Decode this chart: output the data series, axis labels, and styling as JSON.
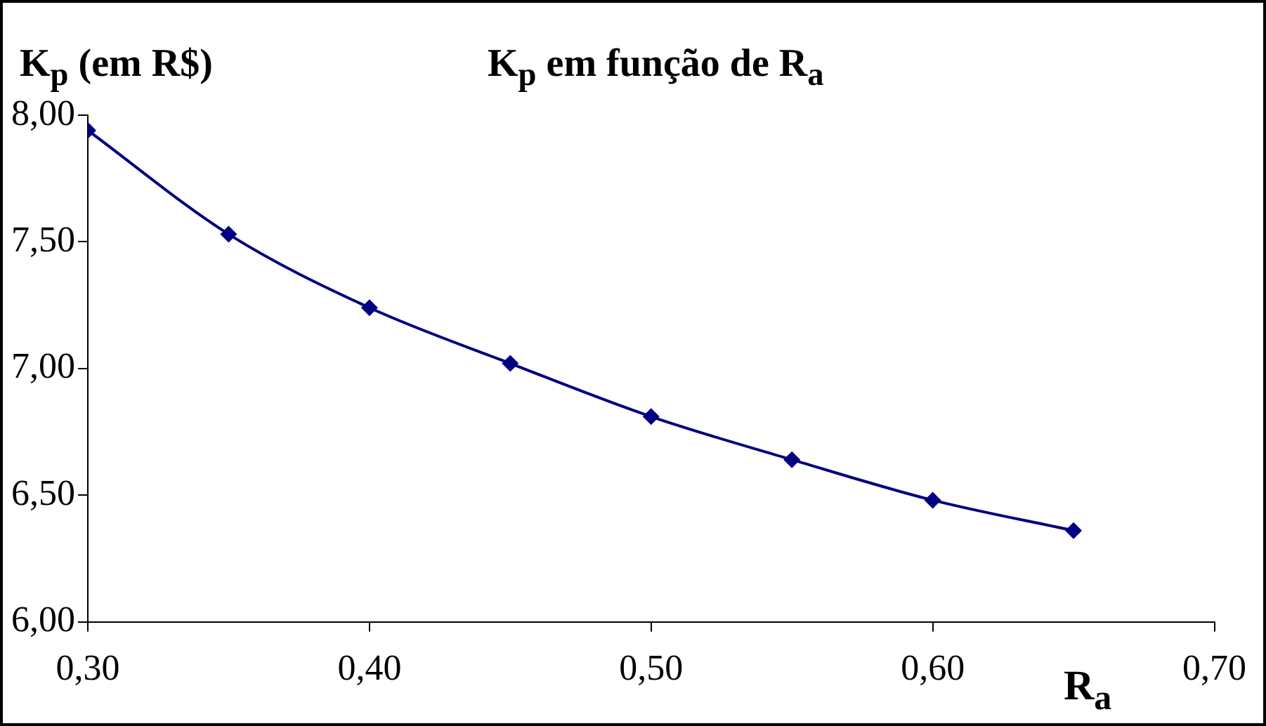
{
  "chart_data": {
    "type": "line",
    "title": "K$_{p}$  em função de R$_{a}$",
    "ylabel": "K$_{p}$  (em R$)",
    "xlabel": "R$_{a}$",
    "x": [
      0.3,
      0.35,
      0.4,
      0.45,
      0.5,
      0.55,
      0.6,
      0.65
    ],
    "series": [
      {
        "color": "#000080",
        "values": [
          7.94,
          7.53,
          7.24,
          7.02,
          6.81,
          6.64,
          6.48,
          6.36
        ]
      }
    ],
    "xlim": [
      0.3,
      0.7
    ],
    "xticks": [
      {
        "value": 0.3,
        "label": "0,30"
      },
      {
        "value": 0.4,
        "label": "0,40"
      },
      {
        "value": 0.5,
        "label": "0,50"
      },
      {
        "value": 0.6,
        "label": "0,60"
      },
      {
        "value": 0.7,
        "label": "0,70"
      }
    ],
    "ylim": [
      6.0,
      8.0
    ],
    "yticks": [
      {
        "value": 6,
        "label": "6,00"
      },
      {
        "value": 6.5,
        "label": "6,50"
      },
      {
        "value": 7,
        "label": "7,00"
      },
      {
        "value": 7.5,
        "label": "7,50"
      },
      {
        "value": 8,
        "label": "8,00"
      }
    ],
    "grid": false,
    "legend": false,
    "marker": "diamond",
    "line_style": "solid"
  }
}
